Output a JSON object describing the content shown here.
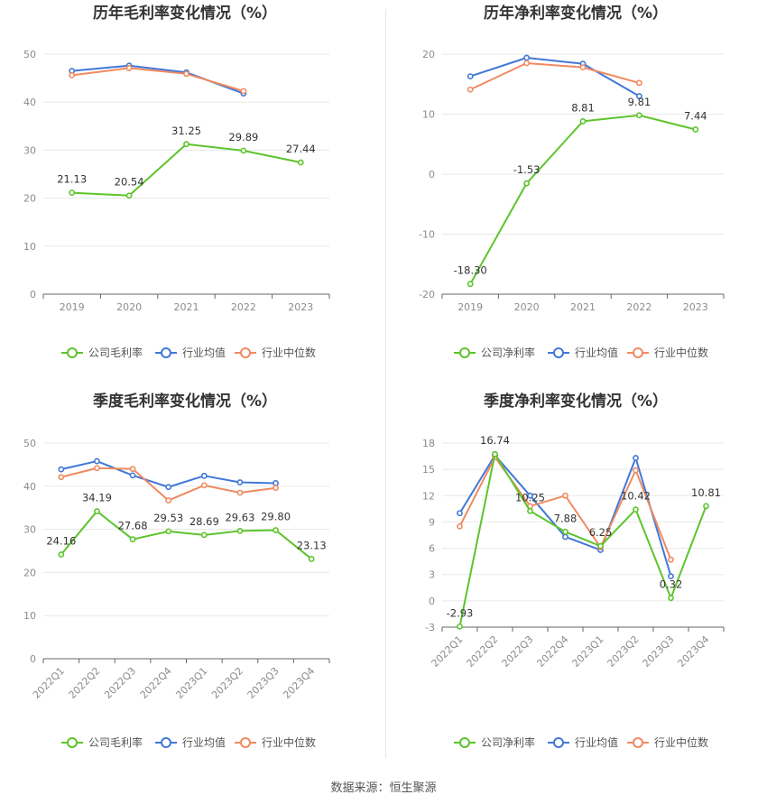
{
  "source_text": "数据来源：恒生聚源",
  "colors": {
    "company": "#5dc42c",
    "avg": "#4277d8",
    "median": "#f08a60"
  },
  "chart_data": [
    {
      "type": "line",
      "title": "历年毛利率变化情况（%）",
      "categories": [
        "2019",
        "2020",
        "2021",
        "2022",
        "2023"
      ],
      "ylim": [
        0,
        50
      ],
      "yticks": [
        0,
        10,
        20,
        30,
        40,
        50
      ],
      "series": [
        {
          "name": "公司毛利率",
          "key": "company",
          "values": [
            21.13,
            20.54,
            31.25,
            29.89,
            27.44
          ],
          "labels": [
            "21.13",
            "20.54",
            "31.25",
            "29.89",
            "27.44"
          ]
        },
        {
          "name": "行业均值",
          "key": "avg",
          "values": [
            46.5,
            47.6,
            46.2,
            41.8,
            null
          ]
        },
        {
          "name": "行业中位数",
          "key": "median",
          "values": [
            45.6,
            47.1,
            45.9,
            42.3,
            null
          ]
        }
      ]
    },
    {
      "type": "line",
      "title": "历年净利率变化情况（%）",
      "categories": [
        "2019",
        "2020",
        "2021",
        "2022",
        "2023"
      ],
      "ylim": [
        -20,
        20
      ],
      "yticks": [
        -20,
        -10,
        0,
        10,
        20
      ],
      "series": [
        {
          "name": "公司净利率",
          "key": "company",
          "values": [
            -18.3,
            -1.53,
            8.81,
            9.81,
            7.44
          ],
          "labels": [
            "-18.30",
            "-1.53",
            "8.81",
            "9.81",
            "7.44"
          ]
        },
        {
          "name": "行业均值",
          "key": "avg",
          "values": [
            16.3,
            19.4,
            18.4,
            13.0,
            null
          ]
        },
        {
          "name": "行业中位数",
          "key": "median",
          "values": [
            14.1,
            18.5,
            17.8,
            15.2,
            null
          ]
        }
      ]
    },
    {
      "type": "line",
      "title": "季度毛利率变化情况（%）",
      "categories": [
        "2022Q1",
        "2022Q2",
        "2022Q3",
        "2022Q4",
        "2023Q1",
        "2023Q2",
        "2023Q3",
        "2023Q4"
      ],
      "ylim": [
        0,
        50
      ],
      "yticks": [
        0,
        10,
        20,
        30,
        40,
        50
      ],
      "rotate_x": true,
      "series": [
        {
          "name": "公司毛利率",
          "key": "company",
          "values": [
            24.16,
            34.19,
            27.68,
            29.53,
            28.69,
            29.63,
            29.8,
            23.13
          ],
          "labels": [
            "24.16",
            "34.19",
            "27.68",
            "29.53",
            "28.69",
            "29.63",
            "29.80",
            "23.13"
          ]
        },
        {
          "name": "行业均值",
          "key": "avg",
          "values": [
            43.9,
            45.8,
            42.5,
            39.8,
            42.4,
            40.9,
            40.7,
            null
          ]
        },
        {
          "name": "行业中位数",
          "key": "median",
          "values": [
            42.1,
            44.2,
            44.0,
            36.7,
            40.2,
            38.5,
            39.6,
            null
          ]
        }
      ]
    },
    {
      "type": "line",
      "title": "季度净利率变化情况（%）",
      "categories": [
        "2022Q1",
        "2022Q2",
        "2022Q3",
        "2022Q4",
        "2023Q1",
        "2023Q2",
        "2023Q3",
        "2023Q4"
      ],
      "ylim": [
        -3,
        18
      ],
      "yticks": [
        -3,
        0,
        3,
        6,
        9,
        12,
        15,
        18
      ],
      "rotate_x": true,
      "series": [
        {
          "name": "公司净利率",
          "key": "company",
          "values": [
            -2.93,
            16.74,
            10.25,
            7.88,
            6.25,
            10.42,
            0.32,
            10.81
          ],
          "labels": [
            "-2.93",
            "16.74",
            "10.25",
            "7.88",
            "6.25",
            "10.42",
            "0.32",
            "10.81"
          ]
        },
        {
          "name": "行业均值",
          "key": "avg",
          "values": [
            10.0,
            16.6,
            12.0,
            7.3,
            5.8,
            16.3,
            2.8,
            null
          ]
        },
        {
          "name": "行业中位数",
          "key": "median",
          "values": [
            8.5,
            16.4,
            10.8,
            12.0,
            6.1,
            14.9,
            4.7,
            null
          ]
        }
      ]
    }
  ]
}
